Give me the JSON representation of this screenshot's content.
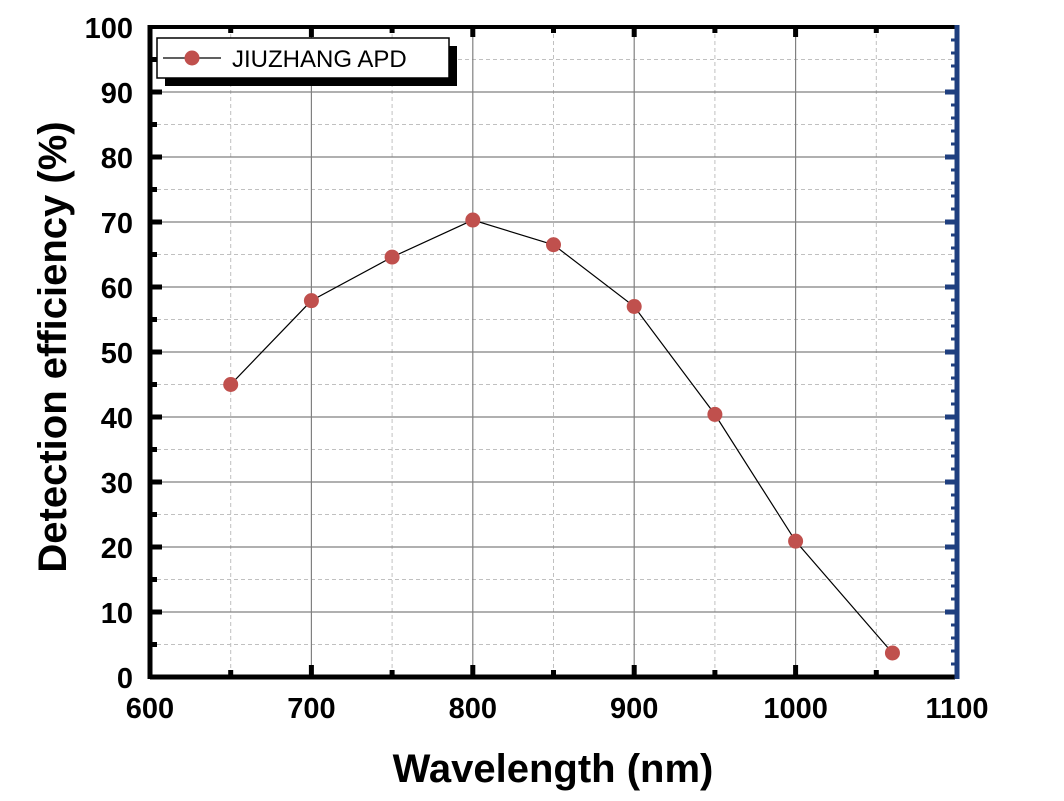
{
  "chart_data": {
    "type": "line",
    "title": "",
    "xlabel": "Wavelength (nm)",
    "ylabel": "Detection efficiency (%)",
    "xlim": [
      600,
      1100
    ],
    "ylim": [
      0,
      100
    ],
    "x_ticks": [
      600,
      700,
      800,
      900,
      1000,
      1100
    ],
    "y_ticks": [
      0,
      10,
      20,
      30,
      40,
      50,
      60,
      70,
      80,
      90,
      100
    ],
    "x_tick_labels": [
      "600",
      "700",
      "800",
      "900",
      "1000",
      "1100"
    ],
    "y_tick_labels": [
      "0",
      "10",
      "20",
      "30",
      "40",
      "50",
      "60",
      "70",
      "80",
      "90",
      "100"
    ],
    "grid": true,
    "legend_position": "top-left",
    "series": [
      {
        "name": "JIUZHANG APD",
        "x": [
          650,
          700,
          750,
          800,
          850,
          900,
          950,
          1000,
          1060
        ],
        "y": [
          45.0,
          57.9,
          64.6,
          70.3,
          66.5,
          57.0,
          40.4,
          20.9,
          3.7
        ],
        "marker_color": "#C0504D",
        "line_color": "#000000"
      }
    ]
  },
  "colors": {
    "frame": "#000000",
    "right_axis": "#1F3F7F",
    "grid": "#808080",
    "minor_grid": "#C0C0C0"
  }
}
